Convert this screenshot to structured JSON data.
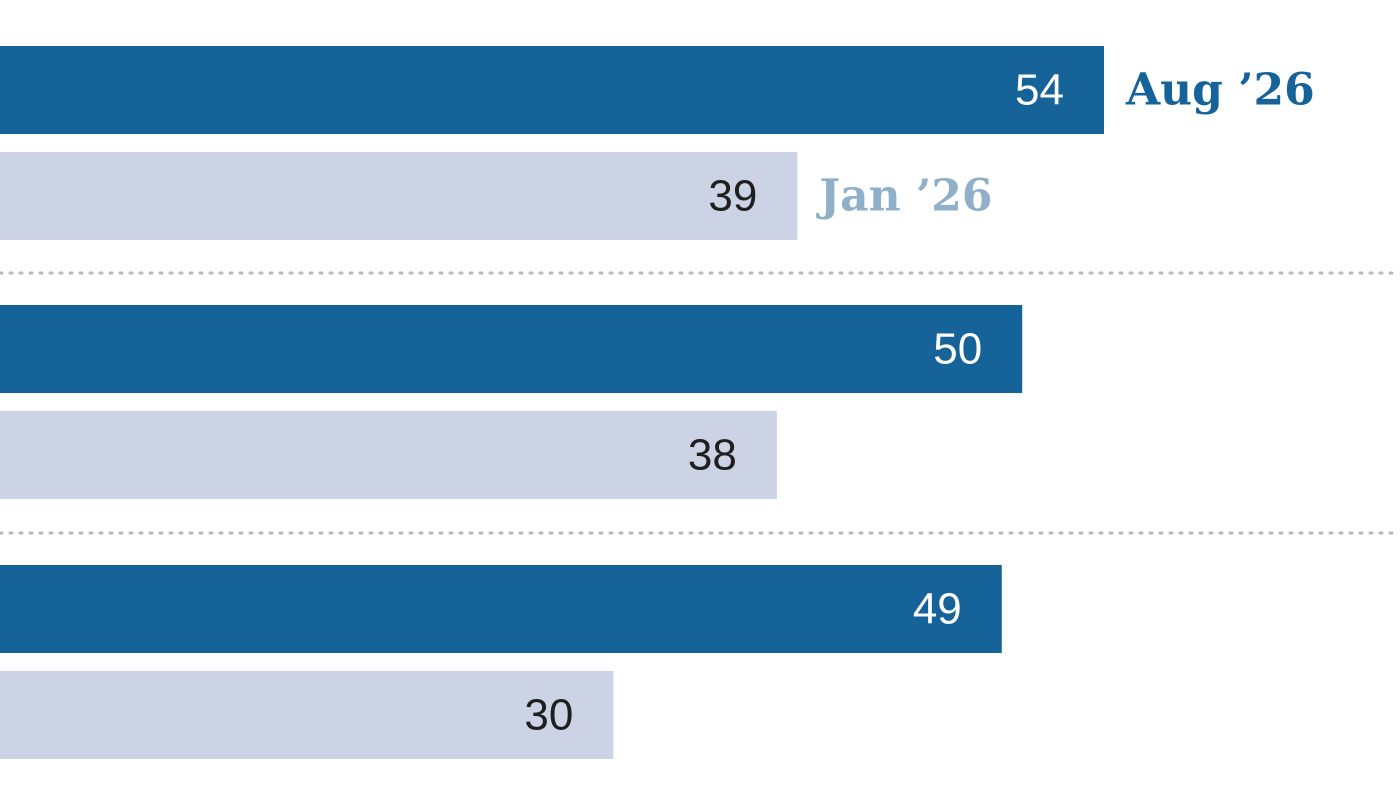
{
  "chart_data": {
    "type": "bar",
    "orientation": "horizontal",
    "title": "",
    "xlabel": "",
    "ylabel": "",
    "categories": [
      "",
      "",
      ""
    ],
    "series": [
      {
        "name": "Aug ’26",
        "color": "#156398",
        "label_color": "#ffffff",
        "values": [
          54,
          50,
          49
        ]
      },
      {
        "name": "Jan ’26",
        "color": "#cbd3e5",
        "label_color": "#1f1f1f",
        "values": [
          39,
          38,
          30
        ]
      }
    ],
    "xlim": [
      0,
      60
    ],
    "series_name_color": [
      "#156398",
      "#8fb0c8"
    ],
    "series_labels_shown_on_group": 0,
    "grid": false,
    "group_dividers": "dotted",
    "divider_color": "#b8b8b8"
  }
}
